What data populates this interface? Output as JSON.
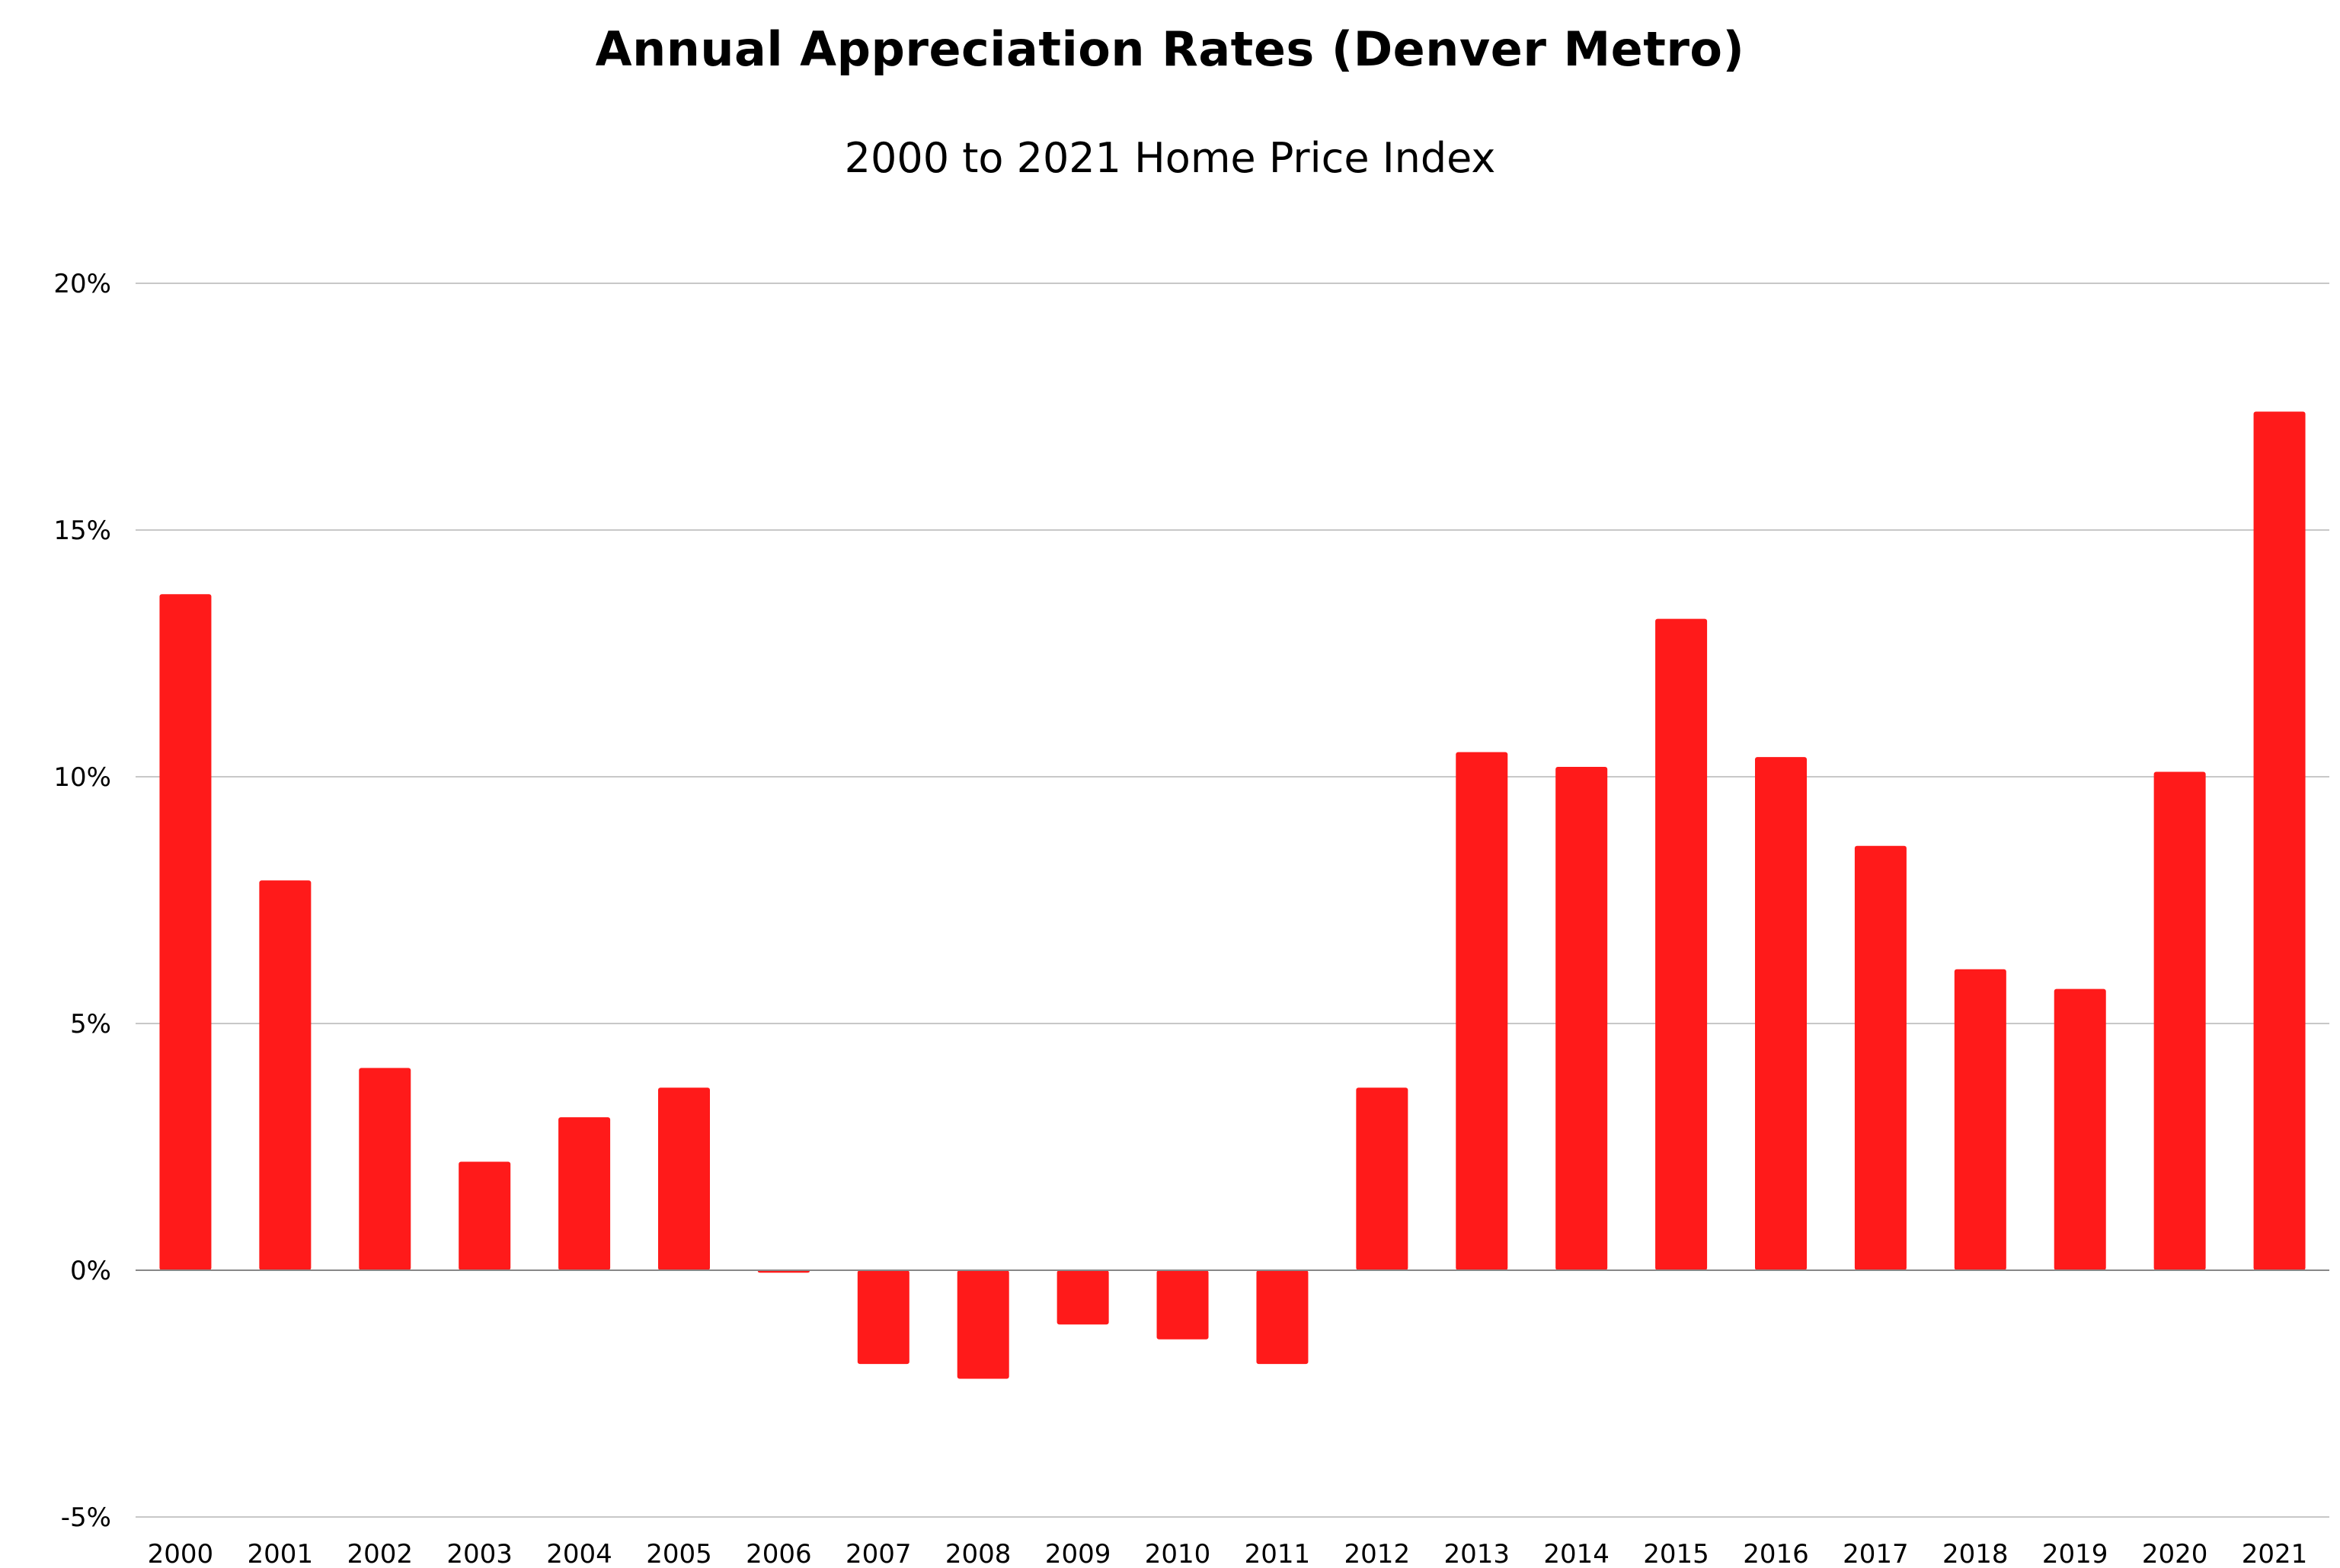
{
  "chart_data": {
    "type": "bar",
    "title": "Annual Appreciation Rates (Denver Metro)",
    "subtitle": "2000 to 2021 Home Price Index",
    "xlabel": "",
    "ylabel": "",
    "categories": [
      "2000",
      "2001",
      "2002",
      "2003",
      "2004",
      "2005",
      "2006",
      "2007",
      "2008",
      "2009",
      "2010",
      "2011",
      "2012",
      "2013",
      "2014",
      "2015",
      "2016",
      "2017",
      "2018",
      "2019",
      "2020",
      "2021"
    ],
    "values": [
      13.7,
      7.9,
      4.1,
      2.2,
      3.1,
      3.7,
      -0.05,
      -1.9,
      -2.2,
      -1.1,
      -1.4,
      -1.9,
      3.7,
      10.5,
      10.2,
      13.2,
      10.4,
      8.6,
      6.1,
      5.7,
      10.1,
      17.4
    ],
    "ylim": [
      -5,
      20
    ],
    "yticks": [
      20,
      15,
      10,
      5,
      0,
      -5
    ],
    "ytick_labels": [
      "20%",
      "15%",
      "10%",
      "5%",
      "0%",
      "-5%"
    ],
    "grid": true,
    "legend": "none",
    "bar_color": "#ff1a1a",
    "grid_color": "#c8c8c8",
    "axis_color": "#888888"
  }
}
